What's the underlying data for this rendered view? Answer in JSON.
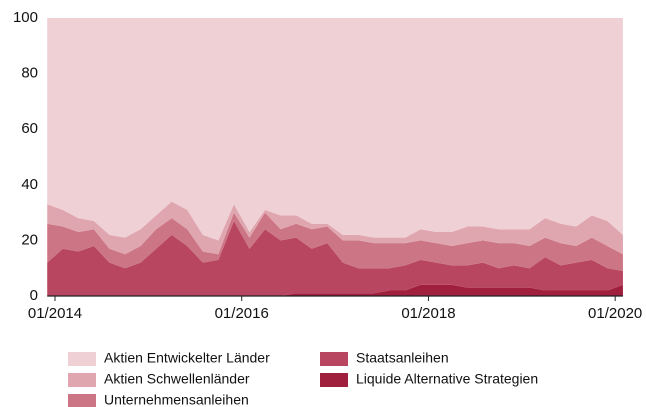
{
  "chart_data": {
    "type": "stacked_area",
    "x": [
      "12/2013",
      "02/2014",
      "04/2014",
      "06/2014",
      "08/2014",
      "10/2014",
      "12/2014",
      "02/2015",
      "04/2015",
      "06/2015",
      "08/2015",
      "10/2015",
      "12/2015",
      "02/2016",
      "04/2016",
      "06/2016",
      "08/2016",
      "10/2016",
      "12/2016",
      "02/2017",
      "04/2017",
      "06/2017",
      "08/2017",
      "10/2017",
      "12/2017",
      "02/2018",
      "04/2018",
      "06/2018",
      "08/2018",
      "10/2018",
      "12/2018",
      "02/2019",
      "04/2019",
      "06/2019",
      "08/2019",
      "10/2019",
      "12/2019",
      "02/2020"
    ],
    "series": [
      {
        "name": "Liquide Alternative Strategien",
        "color": "#a01f3d",
        "values": [
          0,
          0,
          0,
          0,
          0,
          0,
          0,
          0,
          0,
          0,
          0,
          0,
          0,
          0,
          0,
          0,
          1,
          1,
          1,
          1,
          1,
          1,
          2,
          2,
          4,
          4,
          4,
          3,
          3,
          3,
          3,
          3,
          2,
          2,
          2,
          2,
          2,
          4
        ]
      },
      {
        "name": "Staatsanleihen",
        "color": "#b84660",
        "values": [
          12,
          17,
          16,
          18,
          12,
          10,
          12,
          17,
          22,
          18,
          12,
          13,
          27,
          17,
          24,
          20,
          20,
          16,
          18,
          11,
          9,
          9,
          8,
          9,
          9,
          8,
          7,
          8,
          9,
          7,
          8,
          7,
          12,
          9,
          10,
          11,
          8,
          5
        ]
      },
      {
        "name": "Unternehmensanleihen",
        "color": "#cc7585",
        "values": [
          14,
          8,
          7,
          6,
          5,
          5,
          6,
          7,
          6,
          6,
          4,
          2,
          3,
          4,
          6,
          4,
          5,
          7,
          6,
          8,
          10,
          9,
          9,
          8,
          7,
          7,
          7,
          8,
          8,
          9,
          8,
          8,
          7,
          8,
          6,
          8,
          8,
          6
        ]
      },
      {
        "name": "Aktien Schwellenländer",
        "color": "#e0a6b0",
        "values": [
          7,
          6,
          5,
          3,
          5,
          6,
          6,
          5,
          6,
          7,
          6,
          5,
          3,
          2,
          1,
          5,
          3,
          2,
          1,
          2,
          2,
          2,
          2,
          2,
          4,
          4,
          5,
          6,
          5,
          5,
          5,
          6,
          7,
          7,
          7,
          8,
          9,
          7
        ]
      },
      {
        "name": "Aktien Entwickelter Länder",
        "color": "#efd0d5",
        "values": [
          67,
          69,
          72,
          73,
          78,
          79,
          76,
          71,
          66,
          69,
          78,
          80,
          67,
          77,
          69,
          71,
          71,
          74,
          74,
          78,
          78,
          79,
          79,
          79,
          76,
          77,
          77,
          75,
          75,
          76,
          76,
          76,
          72,
          74,
          75,
          71,
          73,
          78
        ]
      }
    ],
    "legend_order": [
      4,
      3,
      2,
      1,
      0
    ],
    "ylim": [
      0,
      100
    ],
    "yticks": [
      0,
      20,
      40,
      60,
      80,
      100
    ],
    "xticks": [
      "01/2014",
      "01/2016",
      "01/2018",
      "01/2020"
    ],
    "grid": false
  }
}
